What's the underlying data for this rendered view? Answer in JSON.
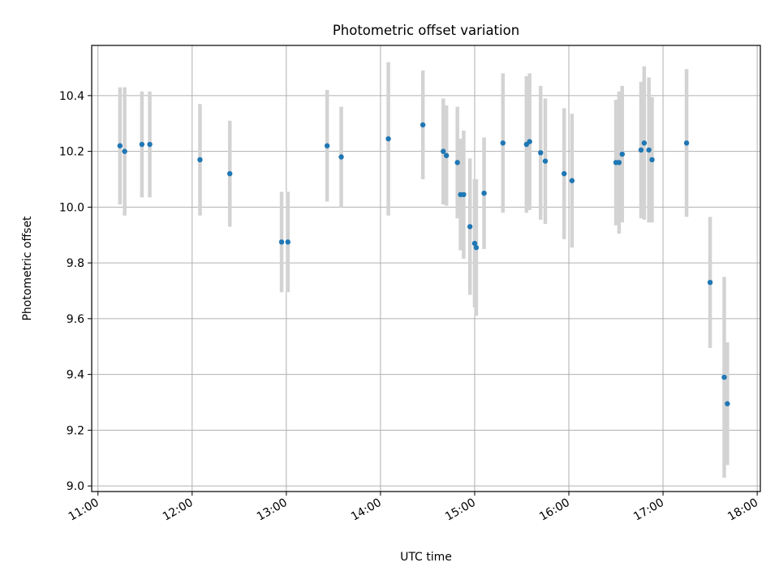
{
  "chart_data": {
    "type": "scatter",
    "title": "Photometric offset variation",
    "xlabel": "UTC time",
    "ylabel": "Photometric offset",
    "xlim": [
      "10:56",
      "18:02"
    ],
    "ylim": [
      8.98,
      10.58
    ],
    "x_ticks": [
      "11:00",
      "12:00",
      "13:00",
      "14:00",
      "15:00",
      "16:00",
      "17:00",
      "18:00"
    ],
    "y_ticks": [
      "9.0",
      "9.2",
      "9.4",
      "9.6",
      "9.8",
      "10.0",
      "10.2",
      "10.4"
    ],
    "grid": true,
    "point_color": "#1f77b4",
    "errorbar_color": "#d3d3d3",
    "points": [
      {
        "x": "11:14",
        "y": 10.22,
        "err": 0.21
      },
      {
        "x": "11:17",
        "y": 10.2,
        "err": 0.23
      },
      {
        "x": "11:28",
        "y": 10.225,
        "err": 0.19
      },
      {
        "x": "11:33",
        "y": 10.225,
        "err": 0.19
      },
      {
        "x": "12:05",
        "y": 10.17,
        "err": 0.2
      },
      {
        "x": "12:24",
        "y": 10.12,
        "err": 0.19
      },
      {
        "x": "12:57",
        "y": 9.875,
        "err": 0.18
      },
      {
        "x": "13:01",
        "y": 9.875,
        "err": 0.18
      },
      {
        "x": "13:26",
        "y": 10.22,
        "err": 0.2
      },
      {
        "x": "13:35",
        "y": 10.18,
        "err": 0.18
      },
      {
        "x": "14:05",
        "y": 10.245,
        "err": 0.275
      },
      {
        "x": "14:27",
        "y": 10.295,
        "err": 0.195
      },
      {
        "x": "14:40",
        "y": 10.2,
        "err": 0.19
      },
      {
        "x": "14:42",
        "y": 10.185,
        "err": 0.18
      },
      {
        "x": "14:49",
        "y": 10.16,
        "err": 0.2
      },
      {
        "x": "14:51",
        "y": 10.045,
        "err": 0.2
      },
      {
        "x": "14:53",
        "y": 10.045,
        "err": 0.23
      },
      {
        "x": "14:57",
        "y": 9.93,
        "err": 0.245
      },
      {
        "x": "15:00",
        "y": 9.87,
        "err": 0.23
      },
      {
        "x": "15:01",
        "y": 9.855,
        "err": 0.245
      },
      {
        "x": "15:06",
        "y": 10.05,
        "err": 0.2
      },
      {
        "x": "15:18",
        "y": 10.23,
        "err": 0.25
      },
      {
        "x": "15:33",
        "y": 10.225,
        "err": 0.245
      },
      {
        "x": "15:35",
        "y": 10.235,
        "err": 0.245
      },
      {
        "x": "15:42",
        "y": 10.195,
        "err": 0.24
      },
      {
        "x": "15:45",
        "y": 10.165,
        "err": 0.225
      },
      {
        "x": "15:57",
        "y": 10.12,
        "err": 0.235
      },
      {
        "x": "16:02",
        "y": 10.095,
        "err": 0.24
      },
      {
        "x": "16:30",
        "y": 10.16,
        "err": 0.225
      },
      {
        "x": "16:32",
        "y": 10.16,
        "err": 0.255
      },
      {
        "x": "16:34",
        "y": 10.19,
        "err": 0.245
      },
      {
        "x": "16:46",
        "y": 10.205,
        "err": 0.245
      },
      {
        "x": "16:48",
        "y": 10.23,
        "err": 0.275
      },
      {
        "x": "16:51",
        "y": 10.205,
        "err": 0.26
      },
      {
        "x": "16:53",
        "y": 10.17,
        "err": 0.225
      },
      {
        "x": "17:15",
        "y": 10.23,
        "err": 0.265
      },
      {
        "x": "17:30",
        "y": 9.73,
        "err": 0.235
      },
      {
        "x": "17:39",
        "y": 9.39,
        "err": 0.36
      },
      {
        "x": "17:41",
        "y": 9.295,
        "err": 0.22
      }
    ]
  }
}
